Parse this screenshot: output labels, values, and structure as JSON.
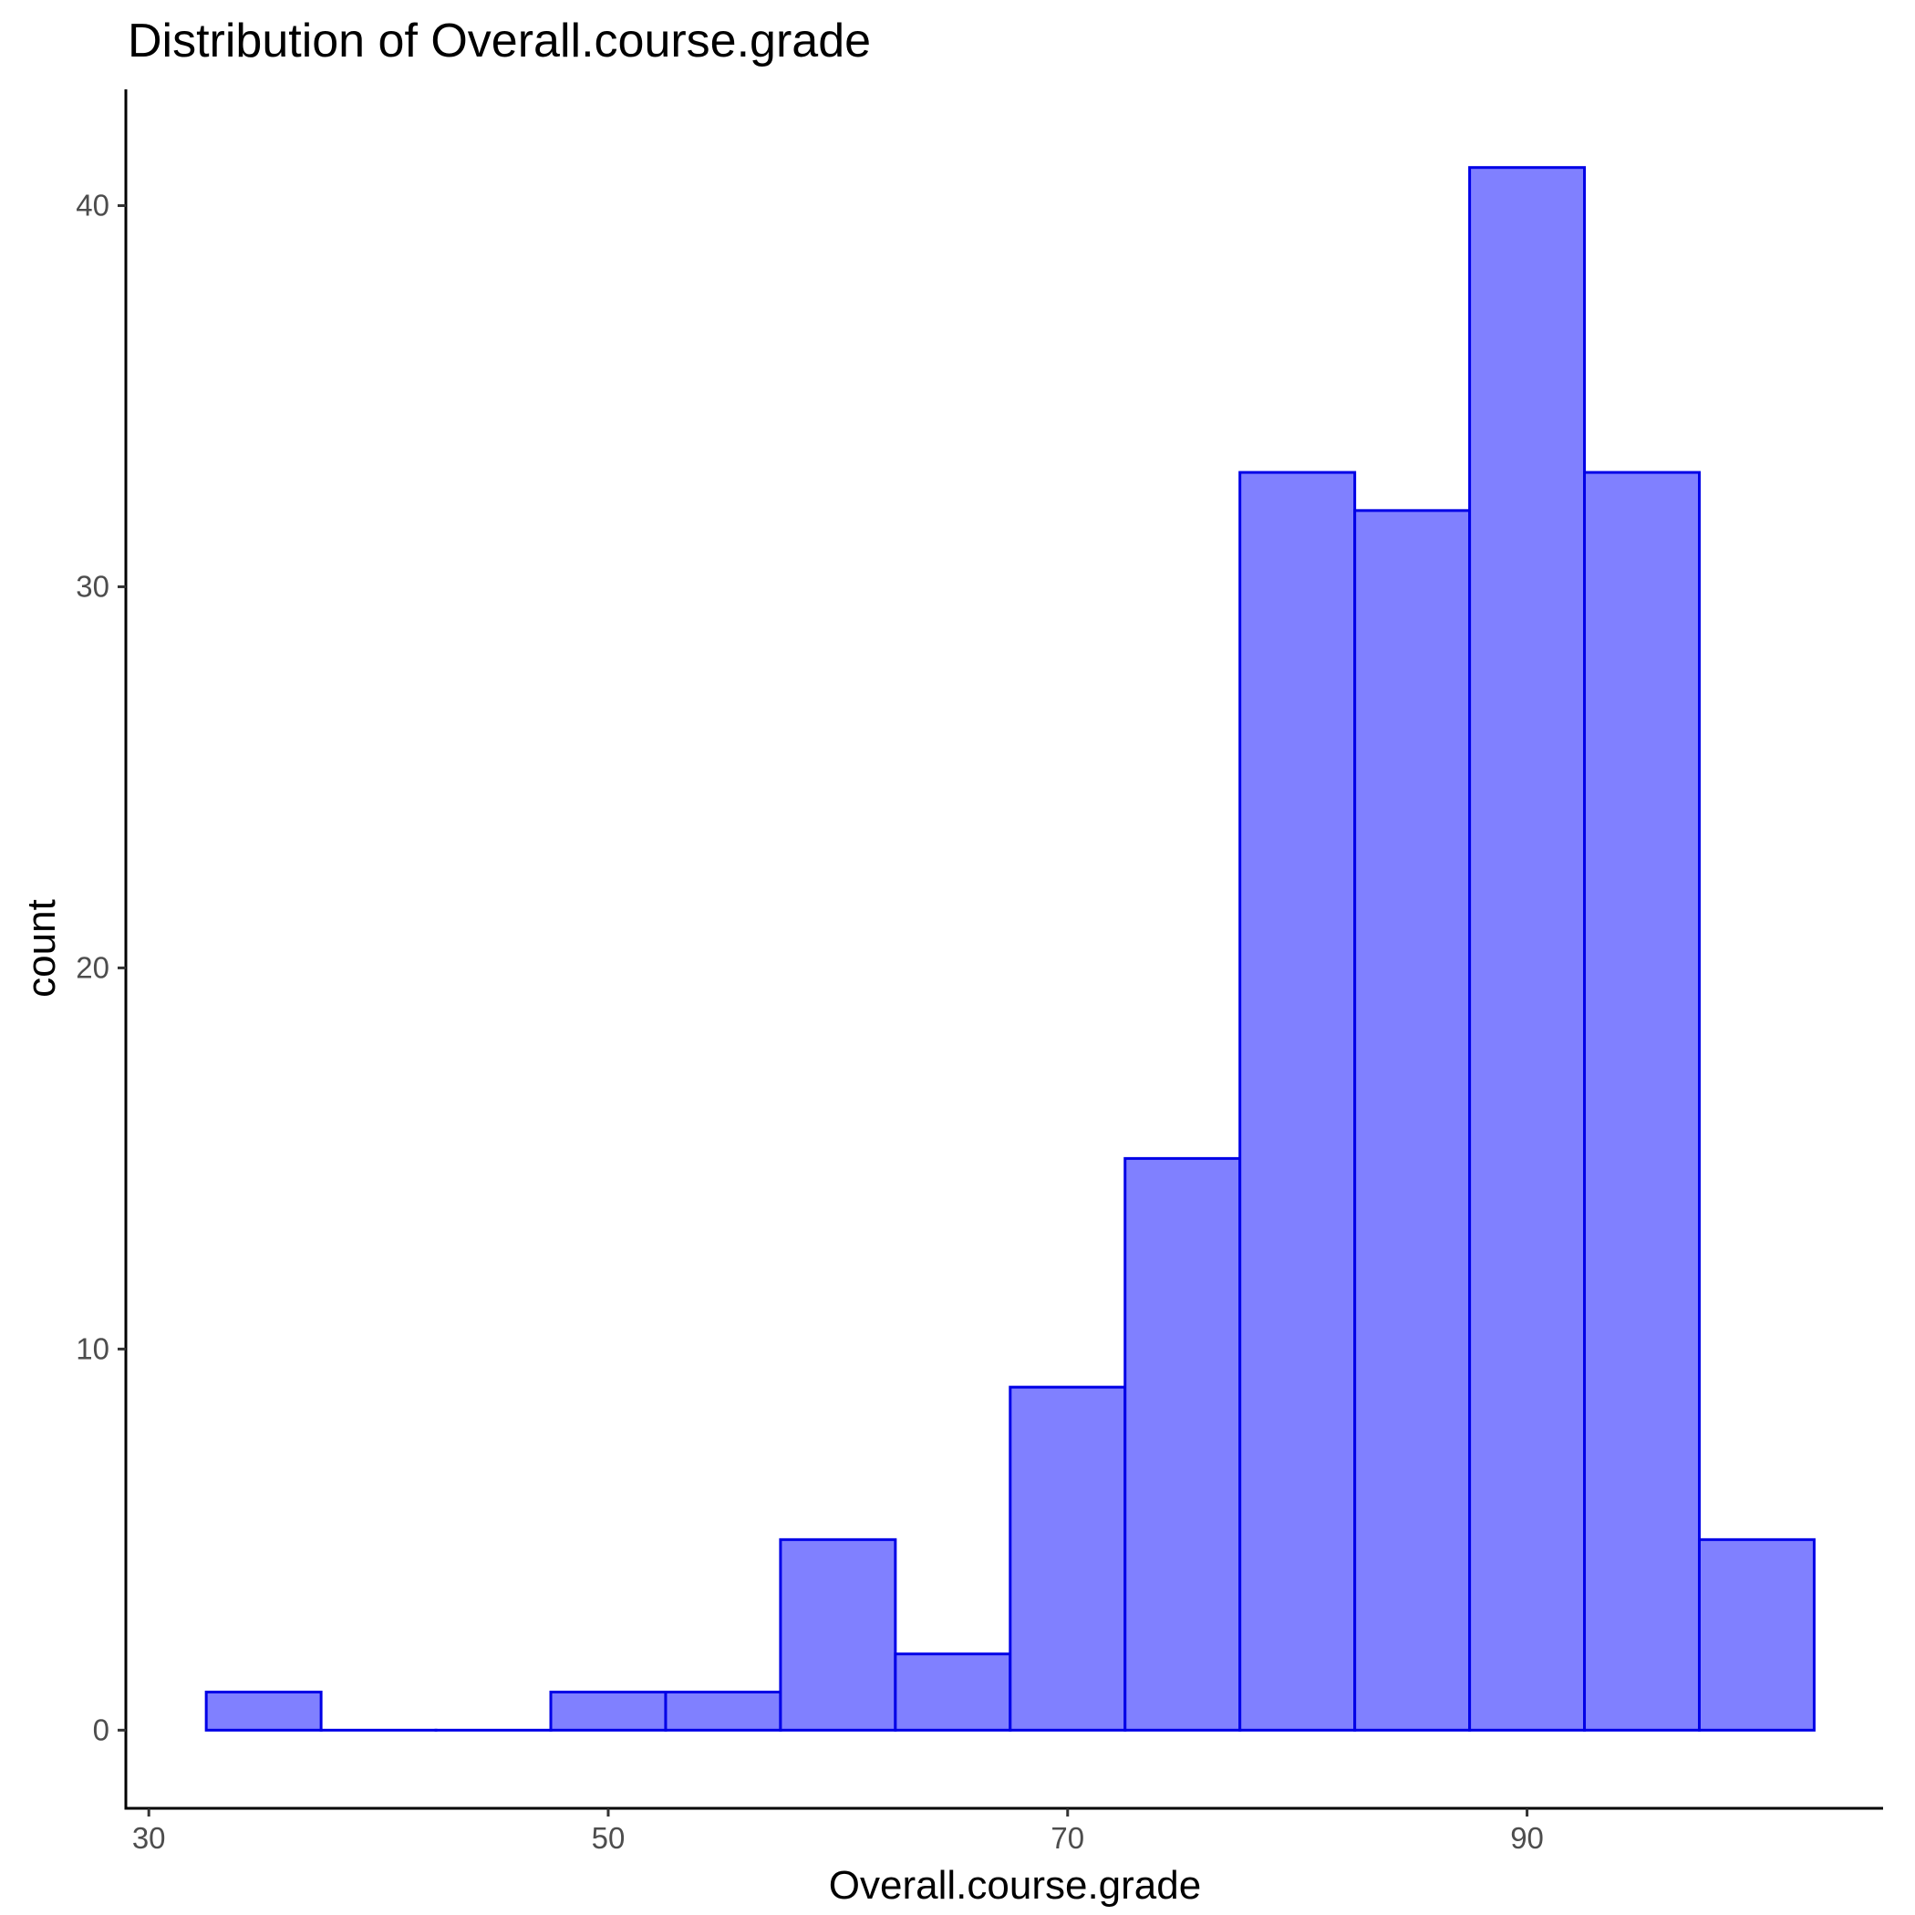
{
  "chart_data": {
    "type": "bar",
    "title": "Distribution of Overall.course.grade",
    "xlabel": "Overall.course.grade",
    "ylabel": "count",
    "bin_width": 5,
    "bins": [
      {
        "x_start": 32.5,
        "x_end": 37.5,
        "count": 1
      },
      {
        "x_start": 37.5,
        "x_end": 42.5,
        "count": 0
      },
      {
        "x_start": 42.5,
        "x_end": 47.5,
        "count": 0
      },
      {
        "x_start": 47.5,
        "x_end": 52.5,
        "count": 1
      },
      {
        "x_start": 52.5,
        "x_end": 57.5,
        "count": 1
      },
      {
        "x_start": 57.5,
        "x_end": 62.5,
        "count": 5
      },
      {
        "x_start": 62.5,
        "x_end": 67.5,
        "count": 2
      },
      {
        "x_start": 67.5,
        "x_end": 72.5,
        "count": 9
      },
      {
        "x_start": 72.5,
        "x_end": 77.5,
        "count": 15
      },
      {
        "x_start": 77.5,
        "x_end": 82.5,
        "count": 33
      },
      {
        "x_start": 82.5,
        "x_end": 87.5,
        "count": 32
      },
      {
        "x_start": 87.5,
        "x_end": 92.5,
        "count": 41
      },
      {
        "x_start": 92.5,
        "x_end": 97.5,
        "count": 33
      },
      {
        "x_start": 97.5,
        "x_end": 102.5,
        "count": 5
      }
    ],
    "xlim": [
      29,
      105.5
    ],
    "ylim": [
      -2.05,
      43.05
    ],
    "x_ticks": [
      30,
      50,
      70,
      90
    ],
    "y_ticks": [
      0,
      10,
      20,
      30,
      40
    ],
    "grid": false,
    "legend": "none",
    "colors": {
      "fill": "#8080ff",
      "stroke": "#0000e6",
      "axis": "#000000",
      "tick_label": "#4d4d4d"
    }
  }
}
